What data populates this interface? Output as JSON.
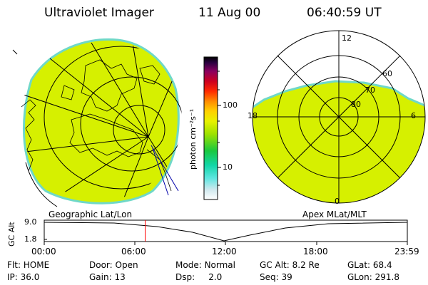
{
  "header": {
    "instrument": "Ultraviolet Imager",
    "date": "11 Aug 00",
    "time": "06:40:59 UT"
  },
  "colorbar": {
    "unit_label": "photon cm⁻²s⁻¹",
    "ticks": [
      "100",
      "10"
    ]
  },
  "left_panel": {
    "label": "Geographic Lat/Lon"
  },
  "right_panel": {
    "label": "Apex MLat/MLT",
    "mlt_labels": {
      "top": "12",
      "left": "18",
      "right": "6",
      "bottom": "0"
    },
    "lat_labels": [
      "60",
      "70",
      "80"
    ]
  },
  "altitude_plot": {
    "ylabel": "GC Alt",
    "ymax": "9.0",
    "ymin": "1.8",
    "x_ticks": [
      "00:00",
      "06:00",
      "12:00",
      "18:00",
      "23:59"
    ],
    "current_time_fraction": 0.278
  },
  "status": {
    "row1": [
      {
        "label": "Flt:",
        "value": "HOME"
      },
      {
        "label": "Door:",
        "value": "Open"
      },
      {
        "label": "Mode:",
        "value": "Normal"
      },
      {
        "label": "GC Alt:",
        "value": "8.2 Re"
      },
      {
        "label": "GLat:",
        "value": "68.4"
      }
    ],
    "row2": [
      {
        "label": "IP:",
        "value": "36.0"
      },
      {
        "label": "Gain:",
        "value": "13"
      },
      {
        "label": "Dsp:",
        "value": "2.0"
      },
      {
        "label": "Seq:",
        "value": "39"
      },
      {
        "label": "GLon:",
        "value": "291.8"
      }
    ]
  },
  "colors": {
    "aurora_fill": "#d6f000",
    "aurora_edge": "#6fd8c8",
    "marker": "#ff0000",
    "projection_line": "#0000aa"
  }
}
